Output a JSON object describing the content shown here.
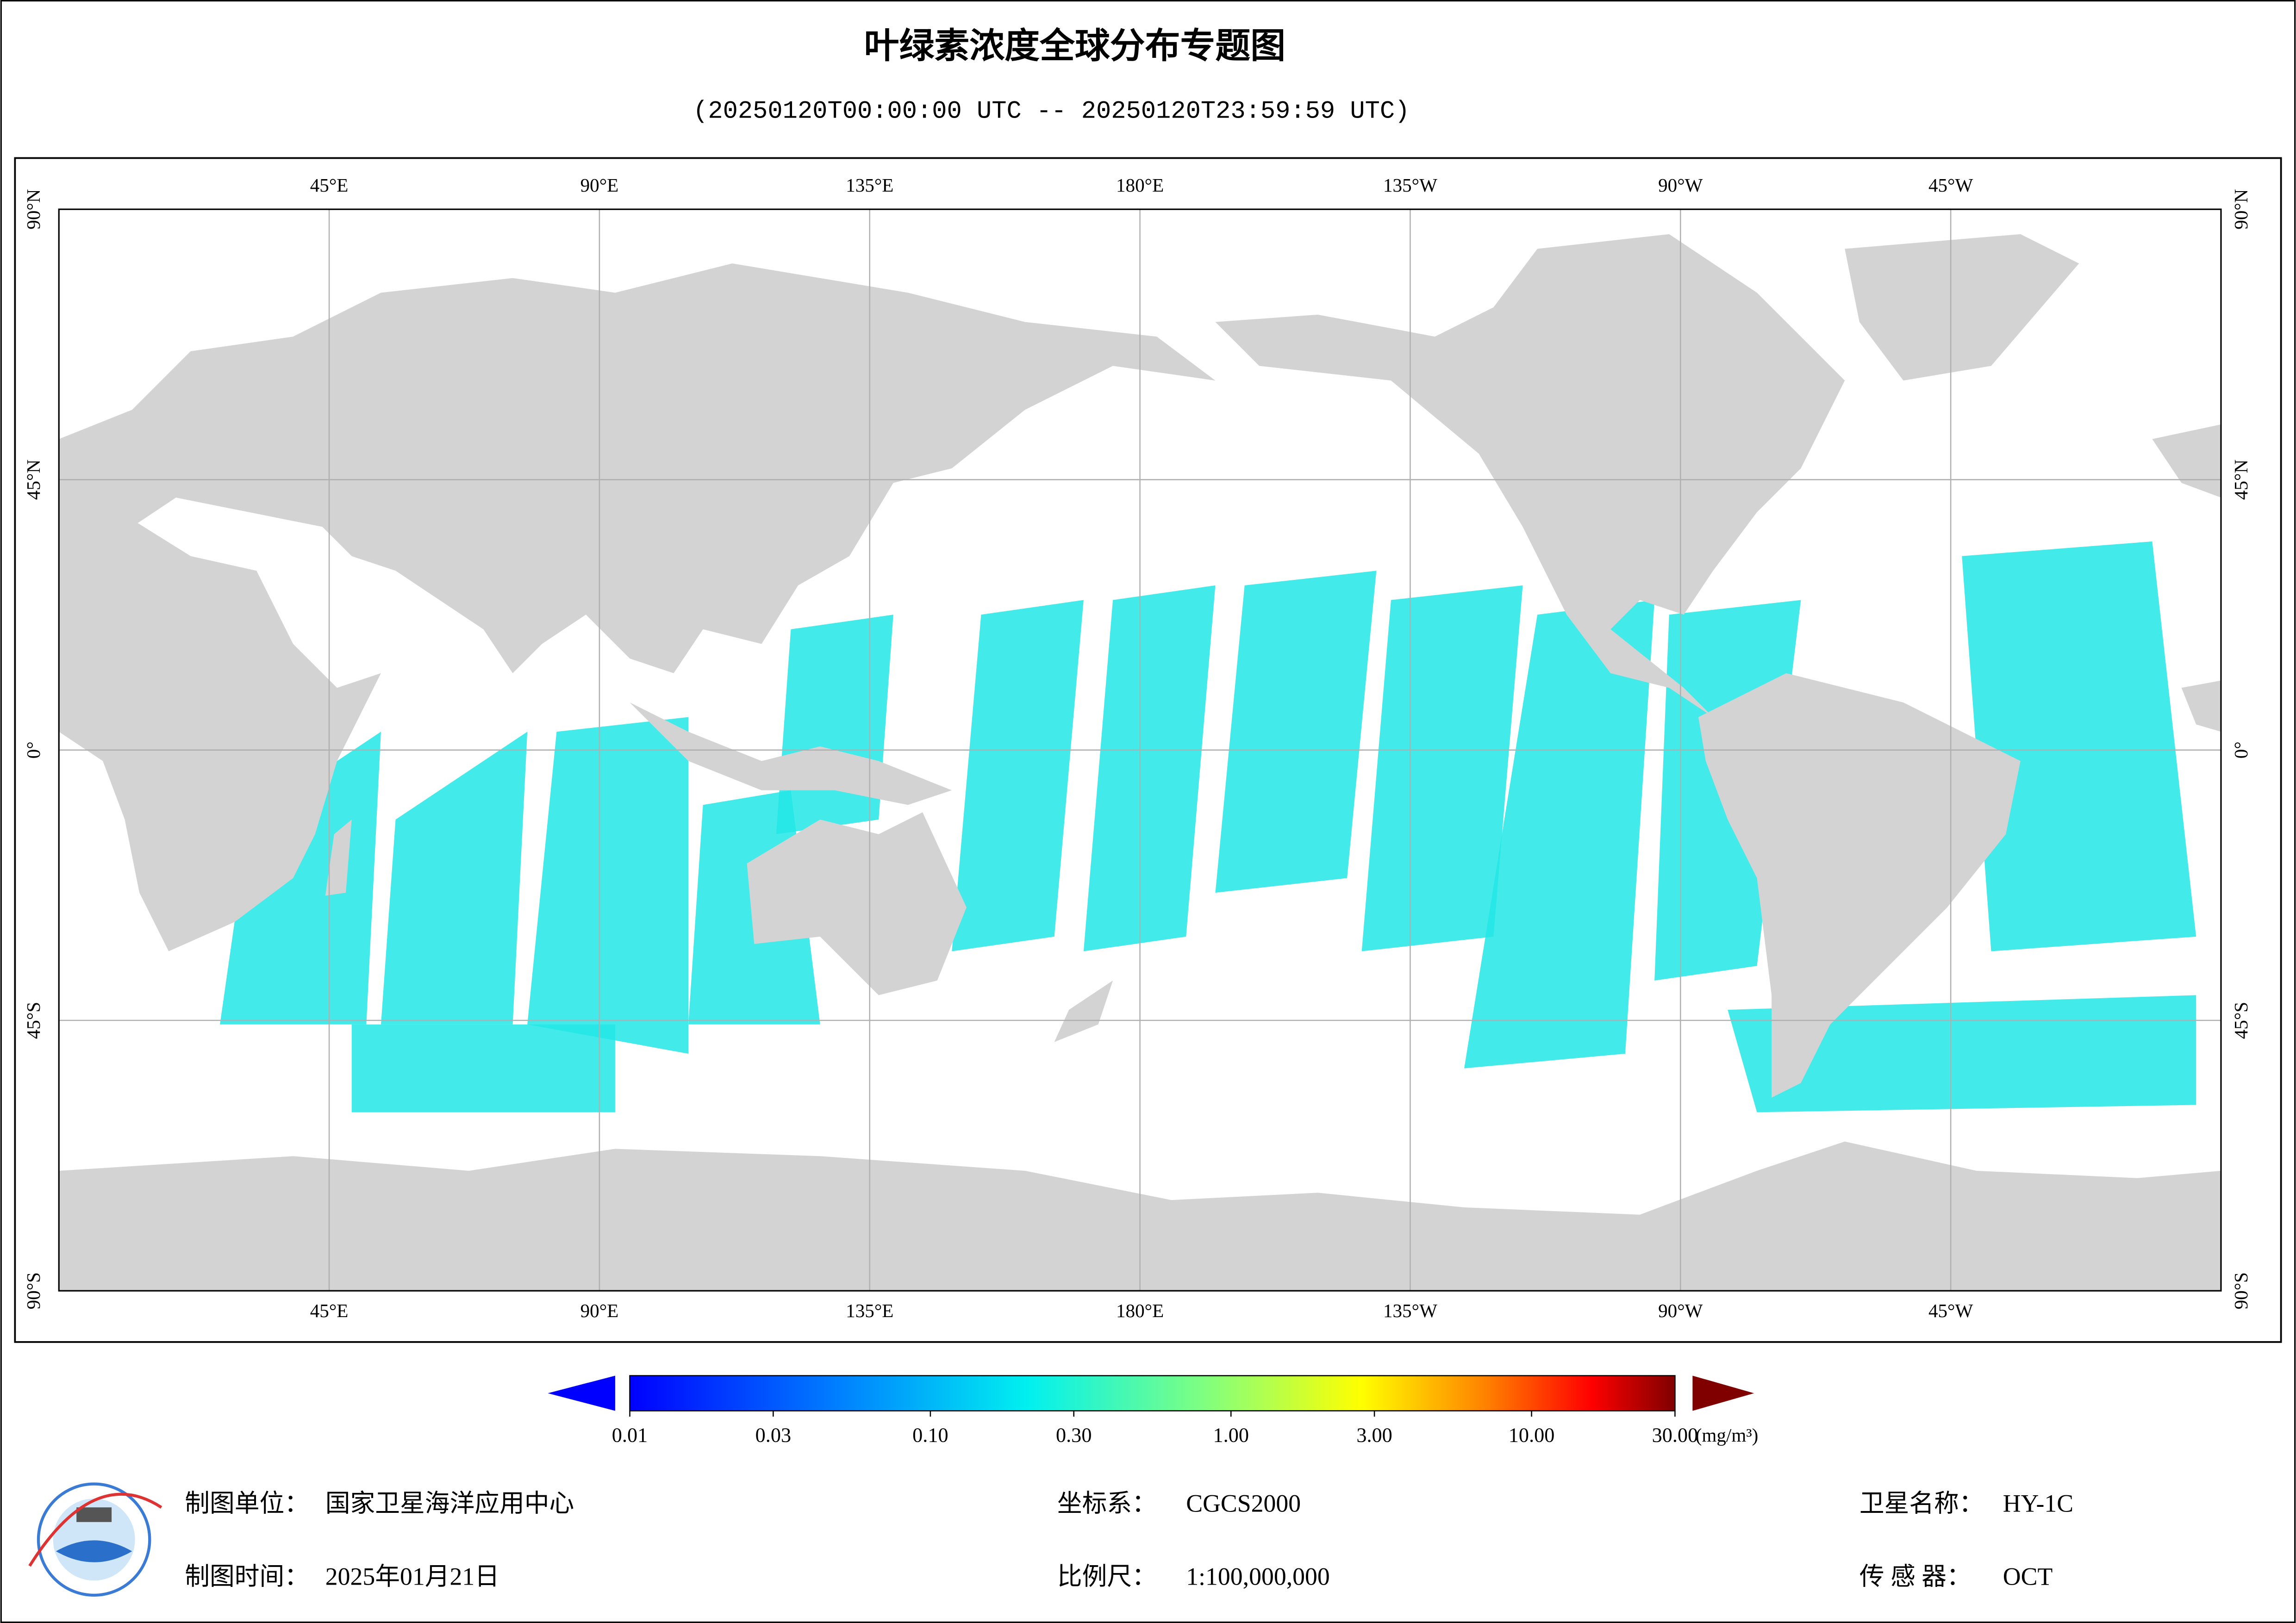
{
  "title": "叶绿素浓度全球分布专题图",
  "subtitle": "(20250120T00:00:00 UTC -- 20250120T23:59:59 UTC)",
  "map": {
    "lonlim": [
      0,
      360
    ],
    "latlim": [
      -90,
      90
    ],
    "grid": true,
    "lon_ticks": [
      {
        "value": 45,
        "label": "45°E"
      },
      {
        "value": 90,
        "label": "90°E"
      },
      {
        "value": 135,
        "label": "135°E"
      },
      {
        "value": 180,
        "label": "180°E"
      },
      {
        "value": 225,
        "label": "135°W"
      },
      {
        "value": 270,
        "label": "90°W"
      },
      {
        "value": 315,
        "label": "45°W"
      }
    ],
    "lat_ticks": [
      {
        "value": 90,
        "label": "90°N"
      },
      {
        "value": 45,
        "label": "45°N"
      },
      {
        "value": 0,
        "label": "0°"
      },
      {
        "value": -45,
        "label": "45°S"
      },
      {
        "value": -90,
        "label": "90°S"
      }
    ]
  },
  "colorbar": {
    "range": [
      0.01,
      30
    ],
    "log_scale": true,
    "unit": "(mg/m³)",
    "ticks": [
      {
        "value": 0.01,
        "label": "0.01"
      },
      {
        "value": 0.03,
        "label": "0.03"
      },
      {
        "value": 0.1,
        "label": "0.10"
      },
      {
        "value": 0.3,
        "label": "0.30"
      },
      {
        "value": 1,
        "label": "1.00"
      },
      {
        "value": 3,
        "label": "3.00"
      },
      {
        "value": 10,
        "label": "10.00"
      },
      {
        "value": 30,
        "label": "30.00"
      }
    ]
  },
  "footer": {
    "producer_label": "制图单位：",
    "producer": "国家卫星海洋应用中心",
    "date_label": "制图时间：",
    "date": "2025年01月21日",
    "crs_label": "坐标系：",
    "crs": "CGCS2000",
    "scale_label": "比例尺：",
    "scale": "1:100,000,000",
    "satellite_label": "卫星名称：",
    "satellite": "HY-1C",
    "sensor_label": "传 感 器：",
    "sensor": "OCT"
  }
}
